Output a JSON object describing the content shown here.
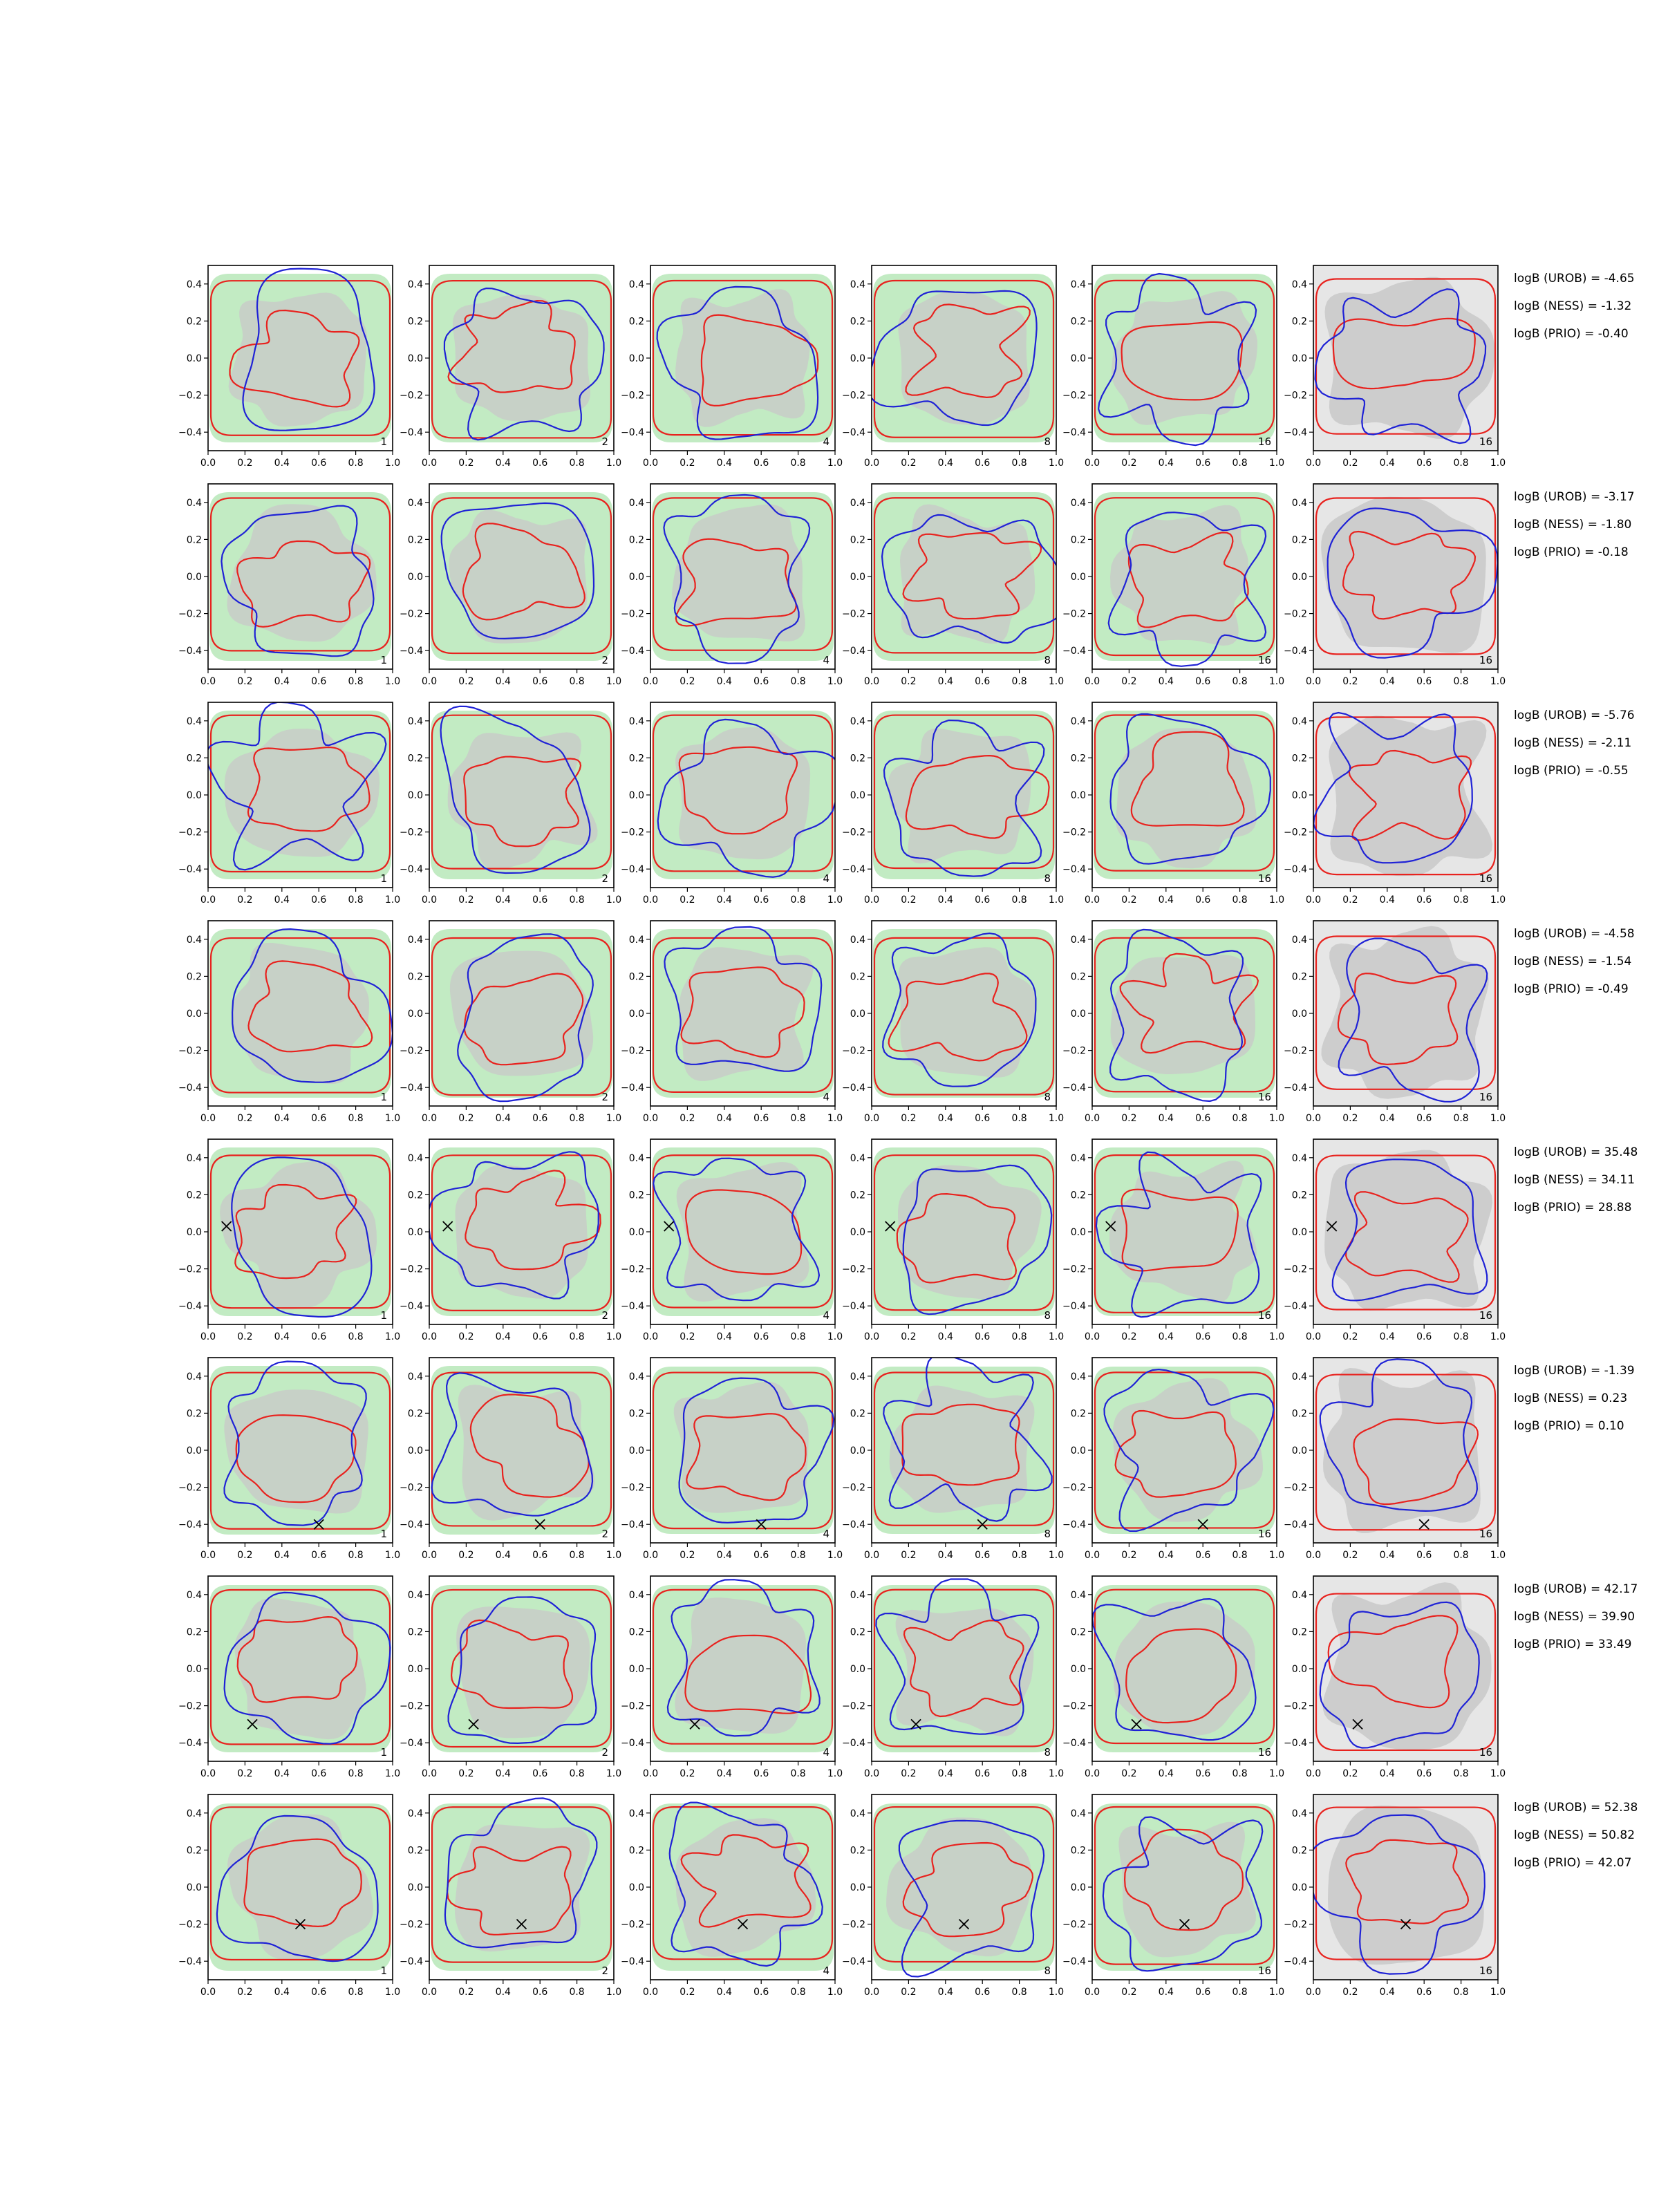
{
  "chart_data": {
    "type": "contour-grid",
    "rows": 8,
    "columns": 6,
    "xlim": [
      0.0,
      1.0
    ],
    "ylim": [
      -0.5,
      0.5
    ],
    "xticks": [
      "0.0",
      "0.2",
      "0.4",
      "0.6",
      "0.8",
      "1.0"
    ],
    "yticks": [
      "0.4",
      "0.2",
      "0.0",
      "−0.2",
      "−0.4"
    ],
    "panel_labels": [
      "1",
      "2",
      "4",
      "8",
      "16",
      "16"
    ],
    "colors": {
      "red": "#e8221e",
      "blue": "#1f22d6",
      "green_fill": "#c2ebc3",
      "grey_fill": "#c8c8c8",
      "light_fill": "#e6e6e6"
    },
    "row_logB": [
      {
        "urob": "logB (UROB) = -4.65",
        "ness": "logB (NESS) = -1.32",
        "prio": "logB (PRIO) = -0.40",
        "marker": null
      },
      {
        "urob": "logB (UROB) = -3.17",
        "ness": "logB (NESS) = -1.80",
        "prio": "logB (PRIO) = -0.18",
        "marker": null
      },
      {
        "urob": "logB (UROB) = -5.76",
        "ness": "logB (NESS) = -2.11",
        "prio": "logB (PRIO) = -0.55",
        "marker": null
      },
      {
        "urob": "logB (UROB) = -4.58",
        "ness": "logB (NESS) = -1.54",
        "prio": "logB (PRIO) = -0.49",
        "marker": null
      },
      {
        "urob": "logB (UROB) = 35.48",
        "ness": "logB (NESS) = 34.11",
        "prio": "logB (PRIO) = 28.88",
        "marker": [
          0.1,
          0.03
        ]
      },
      {
        "urob": "logB (UROB) = -1.39",
        "ness": "logB (NESS) = 0.23",
        "prio": "logB (PRIO) = 0.10",
        "marker": [
          0.6,
          -0.4
        ]
      },
      {
        "urob": "logB (UROB) = 42.17",
        "ness": "logB (NESS) = 39.90",
        "prio": "logB (PRIO) = 33.49",
        "marker": [
          0.24,
          -0.3
        ]
      },
      {
        "urob": "logB (UROB) = 52.38",
        "ness": "logB (NESS) = 50.82",
        "prio": "logB (PRIO) = 42.07",
        "marker": [
          0.5,
          -0.2
        ]
      }
    ]
  }
}
